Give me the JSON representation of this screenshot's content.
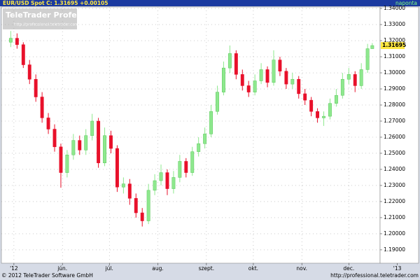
{
  "chart_data": {
    "type": "candlestick",
    "title": "EUR/USD Spot C: 1.31695 +0.00105",
    "period": "naponta",
    "watermark": {
      "brand": "TeleTrader Professional",
      "url": "http://professional.teletrader.com/"
    },
    "footer": {
      "copyright": "© 2012 TeleTrader Software GmbH",
      "url": "http://professional.teletrader.com"
    },
    "up_color": "#8ee88e",
    "down_color": "#e8102a",
    "grid": true,
    "x": [
      120,
      124,
      128,
      132,
      136,
      140,
      144,
      148,
      152,
      156,
      160,
      164,
      168,
      172,
      176,
      180,
      184,
      188,
      192,
      196,
      200,
      204,
      208,
      212,
      216,
      220,
      224,
      228,
      232,
      236,
      240,
      244,
      248,
      252,
      256,
      260,
      264,
      268,
      272,
      276,
      280,
      284,
      288,
      292,
      296,
      300,
      304,
      308,
      312,
      316,
      320,
      324,
      328,
      332,
      336,
      340,
      344,
      348,
      351
    ],
    "open": [
      1.319,
      1.3215,
      1.3175,
      1.305,
      1.296,
      1.285,
      1.272,
      1.265,
      1.254,
      1.238,
      1.249,
      1.258,
      1.252,
      1.261,
      1.27,
      1.244,
      1.261,
      1.253,
      1.229,
      1.231,
      1.222,
      1.213,
      1.208,
      1.227,
      1.233,
      1.238,
      1.228,
      1.235,
      1.245,
      1.238,
      1.251,
      1.256,
      1.262,
      1.276,
      1.288,
      1.303,
      1.312,
      1.299,
      1.292,
      1.288,
      1.295,
      1.302,
      1.294,
      1.308,
      1.301,
      1.293,
      1.296,
      1.287,
      1.283,
      1.276,
      1.272,
      1.273,
      1.281,
      1.286,
      1.296,
      1.299,
      1.292,
      1.302,
      1.315
    ],
    "high": [
      1.326,
      1.3245,
      1.319,
      1.308,
      1.299,
      1.288,
      1.275,
      1.268,
      1.256,
      1.252,
      1.262,
      1.261,
      1.265,
      1.2745,
      1.272,
      1.266,
      1.264,
      1.255,
      1.235,
      1.234,
      1.225,
      1.216,
      1.231,
      1.237,
      1.243,
      1.24,
      1.239,
      1.249,
      1.247,
      1.254,
      1.26,
      1.266,
      1.28,
      1.292,
      1.307,
      1.317,
      1.314,
      1.302,
      1.295,
      1.299,
      1.306,
      1.304,
      1.314,
      1.31,
      1.303,
      1.3,
      1.298,
      1.29,
      1.285,
      1.278,
      1.276,
      1.284,
      1.29,
      1.3,
      1.303,
      1.301,
      1.306,
      1.318,
      1.3185
    ],
    "low": [
      1.316,
      1.315,
      1.303,
      1.293,
      1.282,
      1.269,
      1.262,
      1.251,
      1.2286,
      1.235,
      1.246,
      1.249,
      1.249,
      1.258,
      1.241,
      1.242,
      1.25,
      1.226,
      1.225,
      1.218,
      1.21,
      1.2045,
      1.206,
      1.224,
      1.23,
      1.224,
      1.225,
      1.232,
      1.235,
      1.236,
      1.248,
      1.253,
      1.26,
      1.274,
      1.286,
      1.3,
      1.296,
      1.289,
      1.285,
      1.286,
      1.293,
      1.291,
      1.292,
      1.298,
      1.29,
      1.29,
      1.284,
      1.28,
      1.273,
      1.269,
      1.267,
      1.271,
      1.279,
      1.284,
      1.293,
      1.288,
      1.29,
      1.3,
      1.315
    ],
    "close": [
      1.3215,
      1.3175,
      1.305,
      1.296,
      1.285,
      1.272,
      1.265,
      1.254,
      1.238,
      1.249,
      1.258,
      1.252,
      1.261,
      1.27,
      1.244,
      1.261,
      1.253,
      1.229,
      1.231,
      1.222,
      1.213,
      1.208,
      1.227,
      1.233,
      1.238,
      1.228,
      1.235,
      1.245,
      1.238,
      1.251,
      1.256,
      1.262,
      1.276,
      1.288,
      1.303,
      1.312,
      1.299,
      1.292,
      1.288,
      1.295,
      1.302,
      1.294,
      1.308,
      1.301,
      1.293,
      1.296,
      1.287,
      1.283,
      1.276,
      1.272,
      1.273,
      1.281,
      1.286,
      1.296,
      1.299,
      1.292,
      1.302,
      1.315,
      1.31695
    ],
    "xlim": [
      114,
      356
    ],
    "ylim": [
      1.1817,
      1.3409
    ],
    "xticks": [
      {
        "value": 122,
        "label": "'12"
      },
      {
        "value": 153,
        "label": "jún."
      },
      {
        "value": 183,
        "label": "júl."
      },
      {
        "value": 214,
        "label": "aug."
      },
      {
        "value": 245,
        "label": "szept."
      },
      {
        "value": 275,
        "label": "okt."
      },
      {
        "value": 306,
        "label": "nov."
      },
      {
        "value": 336,
        "label": "dec."
      },
      {
        "value": 367,
        "label": "'13"
      }
    ],
    "yticks": [
      {
        "value": 1.19,
        "label": "1.19000"
      },
      {
        "value": 1.2,
        "label": "1.20000"
      },
      {
        "value": 1.21,
        "label": "1.21000"
      },
      {
        "value": 1.22,
        "label": "1.22000"
      },
      {
        "value": 1.23,
        "label": "1.23000"
      },
      {
        "value": 1.24,
        "label": "1.24000"
      },
      {
        "value": 1.25,
        "label": "1.25000"
      },
      {
        "value": 1.26,
        "label": "1.26000"
      },
      {
        "value": 1.27,
        "label": "1.27000"
      },
      {
        "value": 1.28,
        "label": "1.28000"
      },
      {
        "value": 1.29,
        "label": "1.29000"
      },
      {
        "value": 1.3,
        "label": "1.30000"
      },
      {
        "value": 1.31,
        "label": "1.31000"
      },
      {
        "value": 1.32,
        "label": "1.32000"
      },
      {
        "value": 1.33,
        "label": "1.33000"
      },
      {
        "value": 1.34,
        "label": "1.34000"
      }
    ]
  }
}
